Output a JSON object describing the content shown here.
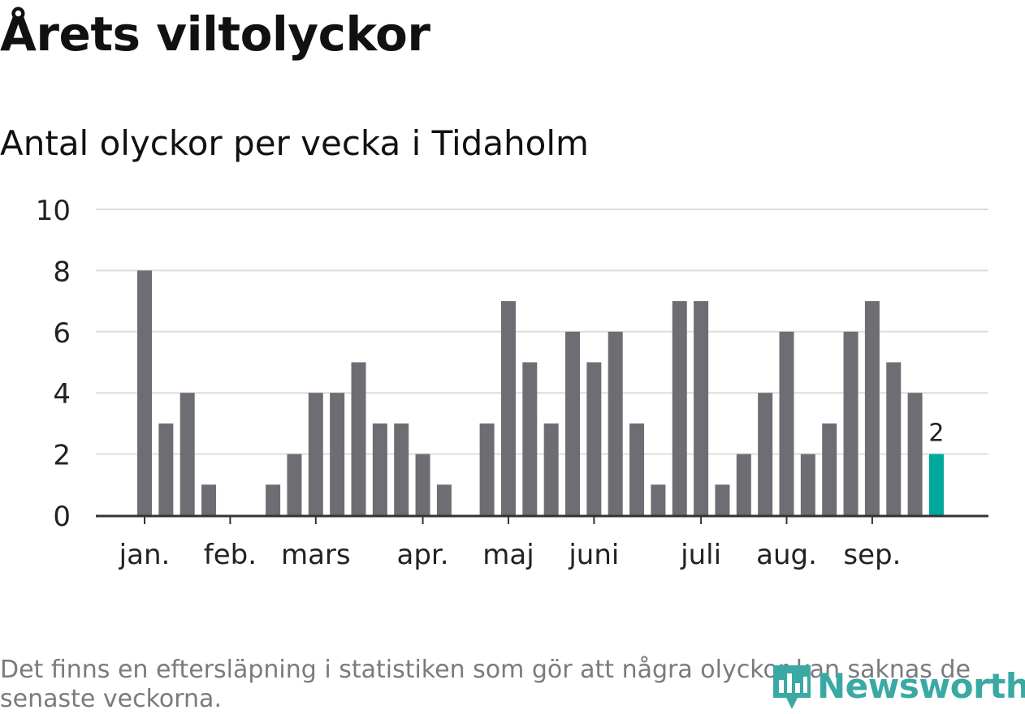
{
  "title": "Årets viltolyckor",
  "subtitle": "Antal olyckor per vecka i Tidaholm",
  "footnote": "Det finns en eftersläpning i statistiken som gör att några olyckor kan saknas de senaste veckorna.",
  "logo_text": "Newsworthy",
  "colors": {
    "bar": "#6e6d73",
    "highlight": "#00a89c",
    "grid": "#dddddd",
    "axis": "#333333",
    "logo": "#3aa9a3"
  },
  "chart_data": {
    "type": "bar",
    "title": "Antal olyckor per vecka i Tidaholm",
    "ylim": [
      0,
      10
    ],
    "yticks": [
      0,
      2,
      4,
      6,
      8,
      10
    ],
    "grid": true,
    "values": [
      8,
      3,
      4,
      1,
      0,
      0,
      1,
      2,
      4,
      4,
      5,
      3,
      3,
      2,
      1,
      0,
      3,
      7,
      5,
      3,
      6,
      5,
      6,
      3,
      1,
      7,
      7,
      1,
      2,
      4,
      6,
      2,
      3,
      6,
      7,
      5,
      4,
      2
    ],
    "highlight_index": 37,
    "highlight_label": "2",
    "month_labels": [
      {
        "label": "jan.",
        "week_index": 0
      },
      {
        "label": "feb.",
        "week_index": 4
      },
      {
        "label": "mars",
        "week_index": 8
      },
      {
        "label": "apr.",
        "week_index": 13
      },
      {
        "label": "maj",
        "week_index": 17
      },
      {
        "label": "juni",
        "week_index": 21
      },
      {
        "label": "juli",
        "week_index": 26
      },
      {
        "label": "aug.",
        "week_index": 30
      },
      {
        "label": "sep.",
        "week_index": 34
      }
    ]
  }
}
